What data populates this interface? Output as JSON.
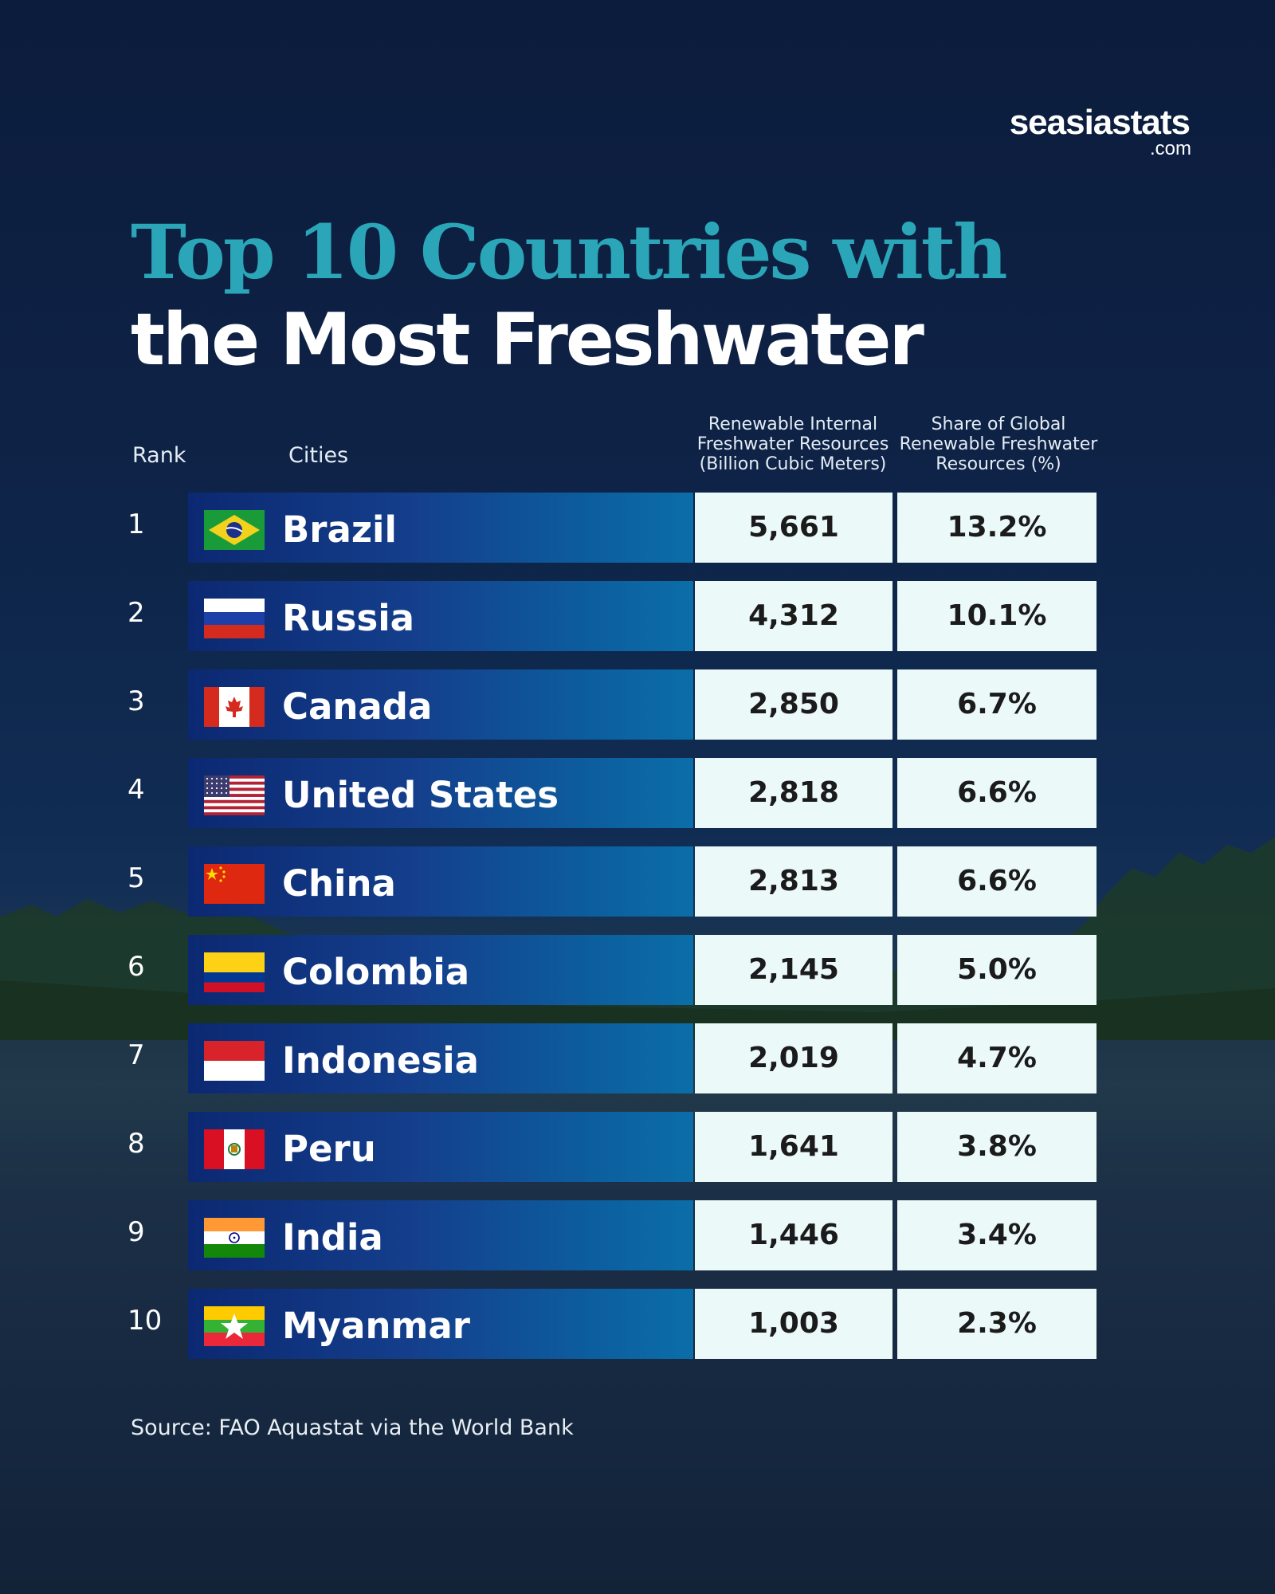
{
  "logo": {
    "main": "seasiastats",
    "sub": ".com"
  },
  "title": {
    "line1": "Top 10 Countries with",
    "line2": "the Most Freshwater"
  },
  "headers": {
    "rank": "Rank",
    "cities": "Cities",
    "col1": [
      "Renewable Internal",
      "Freshwater Resources",
      "(Billion Cubic Meters)"
    ],
    "col2": [
      "Share of Global",
      "Renewable Freshwater",
      "Resources (%)"
    ]
  },
  "source": "Source: FAO Aquastat via the World Bank",
  "colors": {
    "title_accent": "#2aa6b8",
    "row_bar_dark": "#0c2872",
    "row_bar_light": "#0b6ea8",
    "value_cell": "#ecf9f9"
  },
  "chart_data": {
    "type": "table",
    "columns": [
      "Rank",
      "Cities",
      "Renewable Internal Freshwater Resources (Billion Cubic Meters)",
      "Share of Global Renewable Freshwater Resources (%)"
    ],
    "rows": [
      {
        "rank": "1",
        "country": "Brazil",
        "flag": "brazil-flag",
        "resources": "5,661",
        "share": "13.2%"
      },
      {
        "rank": "2",
        "country": "Russia",
        "flag": "russia-flag",
        "resources": "4,312",
        "share": "10.1%"
      },
      {
        "rank": "3",
        "country": "Canada",
        "flag": "canada-flag",
        "resources": "2,850",
        "share": "6.7%"
      },
      {
        "rank": "4",
        "country": "United States",
        "flag": "usa-flag",
        "resources": "2,818",
        "share": "6.6%"
      },
      {
        "rank": "5",
        "country": "China",
        "flag": "china-flag",
        "resources": "2,813",
        "share": "6.6%"
      },
      {
        "rank": "6",
        "country": "Colombia",
        "flag": "colombia-flag",
        "resources": "2,145",
        "share": "5.0%"
      },
      {
        "rank": "7",
        "country": "Indonesia",
        "flag": "indonesia-flag",
        "resources": "2,019",
        "share": "4.7%"
      },
      {
        "rank": "8",
        "country": "Peru",
        "flag": "peru-flag",
        "resources": "1,641",
        "share": "3.8%"
      },
      {
        "rank": "9",
        "country": "India",
        "flag": "india-flag",
        "resources": "1,446",
        "share": "3.4%"
      },
      {
        "rank": "10",
        "country": "Myanmar",
        "flag": "myanmar-flag",
        "resources": "1,003",
        "share": "2.3%"
      }
    ]
  }
}
